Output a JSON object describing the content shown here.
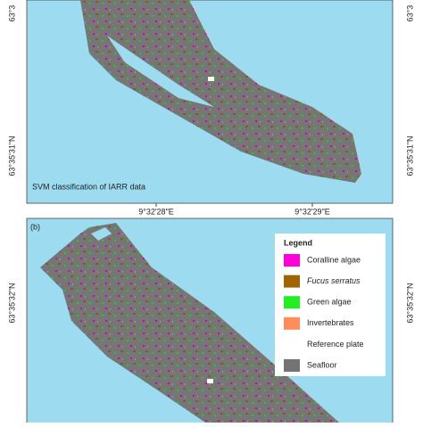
{
  "top_panel": {
    "caption": "SVM classification of IARR data",
    "lat_labels": [
      "63°3",
      "63°35'31\"N"
    ],
    "lon_labels": [
      "9°32'28\"E",
      "9°32'29\"E"
    ]
  },
  "bottom_panel": {
    "label": "(b)",
    "lat_label": "63°35'32\"N",
    "legend": {
      "title": "Legend",
      "items": [
        {
          "name": "Coralline algae",
          "color": "#ff00dc"
        },
        {
          "name": "Fucus serratus",
          "color": "#a06400",
          "italic": true
        },
        {
          "name": "Green algae",
          "color": "#22ee22"
        },
        {
          "name": "Invertebrates",
          "color": "#ff8c5a"
        },
        {
          "name": "Reference plate",
          "color": "#ffffff"
        },
        {
          "name": "Seafloor",
          "color": "#737373"
        }
      ]
    }
  }
}
